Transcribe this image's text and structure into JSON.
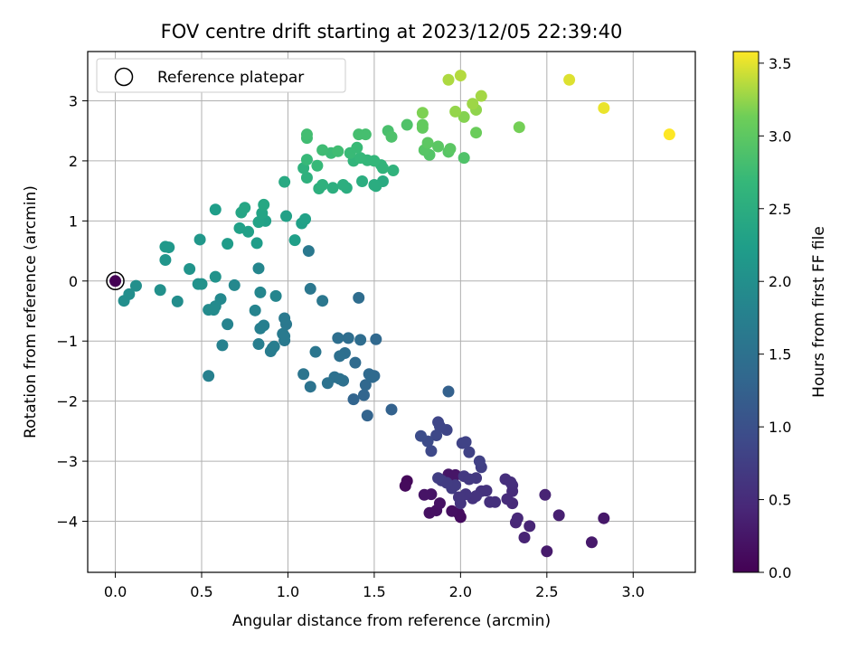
{
  "chart_data": {
    "type": "scatter",
    "title": "FOV centre drift starting at 2023/12/05 22:39:40",
    "xlabel": "Angular distance from reference (arcmin)",
    "ylabel": "Rotation from reference (arcmin)",
    "xlim": [
      -0.16,
      3.36
    ],
    "ylim": [
      -4.85,
      3.82
    ],
    "xticks": [
      "0.0",
      "0.5",
      "1.0",
      "1.5",
      "2.0",
      "2.5",
      "3.0"
    ],
    "yticks": [
      "3",
      "2",
      "1",
      "0",
      "−1",
      "−2",
      "−3",
      "−4"
    ],
    "grid": true,
    "legend": {
      "position": "top-left",
      "entries": [
        "Reference platepar"
      ]
    },
    "colorbar": {
      "label": "Hours from first FF file",
      "colormap": "viridis",
      "range": [
        0.0,
        3.58
      ],
      "ticks": [
        "0.0",
        "0.5",
        "1.0",
        "1.5",
        "2.0",
        "2.5",
        "3.0",
        "3.5"
      ]
    },
    "series": [
      {
        "comment_fields": "each point: [x arcmin, y arcmin, hours]",
        "points": [
          [
            0.0,
            0.0,
            0.0
          ],
          [
            3.21,
            2.44,
            3.58
          ],
          [
            2.83,
            2.88,
            3.52
          ],
          [
            2.63,
            3.35,
            3.48
          ],
          [
            2.0,
            3.42,
            3.35
          ],
          [
            1.93,
            3.35,
            3.33
          ],
          [
            2.12,
            3.08,
            3.3
          ],
          [
            2.07,
            2.95,
            3.28
          ],
          [
            1.97,
            2.82,
            3.25
          ],
          [
            2.09,
            2.85,
            3.24
          ],
          [
            2.02,
            2.73,
            3.2
          ],
          [
            1.78,
            2.8,
            3.18
          ],
          [
            2.34,
            2.56,
            3.15
          ],
          [
            2.09,
            2.47,
            3.1
          ],
          [
            1.78,
            2.55,
            3.05
          ],
          [
            1.78,
            2.6,
            3.05
          ],
          [
            1.81,
            2.3,
            3.0
          ],
          [
            1.87,
            2.24,
            2.98
          ],
          [
            1.94,
            2.2,
            2.98
          ],
          [
            1.93,
            2.15,
            2.95
          ],
          [
            1.79,
            2.18,
            2.95
          ],
          [
            1.82,
            2.1,
            2.93
          ],
          [
            2.02,
            2.05,
            2.9
          ],
          [
            1.69,
            2.6,
            2.9
          ],
          [
            1.6,
            2.4,
            2.88
          ],
          [
            1.58,
            2.5,
            2.85
          ],
          [
            1.41,
            2.44,
            2.82
          ],
          [
            1.45,
            2.44,
            2.82
          ],
          [
            1.11,
            2.44,
            2.8
          ],
          [
            1.11,
            2.38,
            2.78
          ],
          [
            1.29,
            2.16,
            2.78
          ],
          [
            1.2,
            2.18,
            2.76
          ],
          [
            1.25,
            2.13,
            2.74
          ],
          [
            1.36,
            2.13,
            2.72
          ],
          [
            1.4,
            2.22,
            2.72
          ],
          [
            1.11,
            2.02,
            2.7
          ],
          [
            1.17,
            1.92,
            2.7
          ],
          [
            1.42,
            2.05,
            2.68
          ],
          [
            1.46,
            2.01,
            2.66
          ],
          [
            1.5,
            2.0,
            2.66
          ],
          [
            1.38,
            2.0,
            2.64
          ],
          [
            1.54,
            1.93,
            2.62
          ],
          [
            1.55,
            1.88,
            2.62
          ],
          [
            1.61,
            1.84,
            2.6
          ],
          [
            1.09,
            1.88,
            2.58
          ],
          [
            1.11,
            1.72,
            2.56
          ],
          [
            1.2,
            1.6,
            2.56
          ],
          [
            1.18,
            1.54,
            2.54
          ],
          [
            1.26,
            1.55,
            2.52
          ],
          [
            1.32,
            1.6,
            2.52
          ],
          [
            1.34,
            1.55,
            2.5
          ],
          [
            1.43,
            1.66,
            2.5
          ],
          [
            1.5,
            1.6,
            2.48
          ],
          [
            1.51,
            1.58,
            2.48
          ],
          [
            1.55,
            1.66,
            2.46
          ],
          [
            0.98,
            1.65,
            2.44
          ],
          [
            0.86,
            1.27,
            2.4
          ],
          [
            0.75,
            1.22,
            2.38
          ],
          [
            0.73,
            1.14,
            2.36
          ],
          [
            0.85,
            1.13,
            2.34
          ],
          [
            0.83,
            0.98,
            2.32
          ],
          [
            0.87,
            1.0,
            2.3
          ],
          [
            0.72,
            0.88,
            2.28
          ],
          [
            0.77,
            0.82,
            2.28
          ],
          [
            0.99,
            1.08,
            2.3
          ],
          [
            1.1,
            1.03,
            2.3
          ],
          [
            1.08,
            0.96,
            2.28
          ],
          [
            1.04,
            0.68,
            2.26
          ],
          [
            0.58,
            1.19,
            2.24
          ],
          [
            0.82,
            0.63,
            2.22
          ],
          [
            0.65,
            0.62,
            2.2
          ],
          [
            0.29,
            0.57,
            2.15
          ],
          [
            0.31,
            0.56,
            2.14
          ],
          [
            0.49,
            0.69,
            2.12
          ],
          [
            0.29,
            0.35,
            2.1
          ],
          [
            0.43,
            0.2,
            2.08
          ],
          [
            0.58,
            0.07,
            2.06
          ],
          [
            0.48,
            -0.05,
            2.04
          ],
          [
            0.5,
            -0.05,
            2.04
          ],
          [
            0.26,
            -0.15,
            2.02
          ],
          [
            0.12,
            -0.08,
            2.0
          ],
          [
            0.08,
            -0.22,
            1.98
          ],
          [
            0.05,
            -0.33,
            1.98
          ],
          [
            0.36,
            -0.34,
            1.96
          ],
          [
            0.54,
            -0.48,
            1.94
          ],
          [
            0.57,
            -0.48,
            1.94
          ],
          [
            0.58,
            -0.42,
            1.92
          ],
          [
            0.61,
            -0.3,
            1.9
          ],
          [
            0.69,
            -0.07,
            1.88
          ],
          [
            0.83,
            0.21,
            1.86
          ],
          [
            0.84,
            -0.19,
            1.86
          ],
          [
            0.93,
            -0.25,
            1.84
          ],
          [
            0.81,
            -0.49,
            1.82
          ],
          [
            0.65,
            -0.72,
            1.8
          ],
          [
            0.62,
            -1.07,
            1.78
          ],
          [
            0.54,
            -1.58,
            1.76
          ],
          [
            0.84,
            -0.79,
            1.74
          ],
          [
            0.86,
            -0.74,
            1.74
          ],
          [
            0.83,
            -1.05,
            1.72
          ],
          [
            0.91,
            -1.12,
            1.7
          ],
          [
            0.92,
            -1.09,
            1.7
          ],
          [
            0.9,
            -1.17,
            1.68
          ],
          [
            0.97,
            -0.88,
            1.66
          ],
          [
            0.98,
            -0.92,
            1.66
          ],
          [
            0.98,
            -0.99,
            1.64
          ],
          [
            0.98,
            -0.62,
            1.64
          ],
          [
            0.99,
            -0.72,
            1.62
          ],
          [
            1.12,
            0.5,
            1.62
          ],
          [
            1.13,
            -0.13,
            1.6
          ],
          [
            1.2,
            -0.33,
            1.6
          ],
          [
            1.16,
            -1.18,
            1.58
          ],
          [
            1.09,
            -1.55,
            1.56
          ],
          [
            1.13,
            -1.76,
            1.54
          ],
          [
            1.23,
            -1.7,
            1.52
          ],
          [
            1.27,
            -1.6,
            1.5
          ],
          [
            1.3,
            -1.63,
            1.5
          ],
          [
            1.32,
            -1.66,
            1.48
          ],
          [
            1.3,
            -1.25,
            1.48
          ],
          [
            1.33,
            -1.2,
            1.46
          ],
          [
            1.29,
            -0.95,
            1.46
          ],
          [
            1.35,
            -0.95,
            1.44
          ],
          [
            1.42,
            -0.98,
            1.42
          ],
          [
            1.41,
            -0.28,
            1.42
          ],
          [
            1.39,
            -1.36,
            1.4
          ],
          [
            1.47,
            -1.55,
            1.38
          ],
          [
            1.49,
            -1.6,
            1.38
          ],
          [
            1.5,
            -1.58,
            1.36
          ],
          [
            1.51,
            -0.97,
            1.36
          ],
          [
            1.45,
            -1.73,
            1.34
          ],
          [
            1.44,
            -1.9,
            1.32
          ],
          [
            1.38,
            -1.97,
            1.3
          ],
          [
            1.46,
            -2.24,
            1.28
          ],
          [
            1.6,
            -2.14,
            1.26
          ],
          [
            1.93,
            -1.84,
            1.24
          ],
          [
            1.77,
            -2.58,
            0.95
          ],
          [
            1.81,
            -2.67,
            0.92
          ],
          [
            1.83,
            -2.83,
            0.9
          ],
          [
            1.86,
            -2.57,
            0.88
          ],
          [
            1.87,
            -2.35,
            0.86
          ],
          [
            1.88,
            -2.42,
            0.86
          ],
          [
            1.92,
            -2.48,
            0.84
          ],
          [
            2.01,
            -2.7,
            0.82
          ],
          [
            2.03,
            -2.68,
            0.82
          ],
          [
            2.05,
            -2.85,
            0.8
          ],
          [
            2.11,
            -3.0,
            0.78
          ],
          [
            2.12,
            -3.1,
            0.76
          ],
          [
            1.87,
            -3.28,
            0.74
          ],
          [
            1.89,
            -3.32,
            0.72
          ],
          [
            1.92,
            -3.36,
            0.72
          ],
          [
            1.95,
            -3.45,
            0.7
          ],
          [
            1.97,
            -3.4,
            0.7
          ],
          [
            2.02,
            -3.25,
            0.68
          ],
          [
            2.05,
            -3.3,
            0.68
          ],
          [
            2.09,
            -3.28,
            0.66
          ],
          [
            1.99,
            -3.6,
            0.64
          ],
          [
            2.0,
            -3.7,
            0.62
          ],
          [
            2.03,
            -3.55,
            0.62
          ],
          [
            2.07,
            -3.62,
            0.6
          ],
          [
            2.09,
            -3.58,
            0.6
          ],
          [
            2.12,
            -3.5,
            0.58
          ],
          [
            2.15,
            -3.49,
            0.58
          ],
          [
            2.17,
            -3.68,
            0.56
          ],
          [
            2.2,
            -3.68,
            0.56
          ],
          [
            2.26,
            -3.3,
            0.54
          ],
          [
            2.29,
            -3.35,
            0.54
          ],
          [
            2.3,
            -3.4,
            0.52
          ],
          [
            2.3,
            -3.5,
            0.5
          ],
          [
            2.27,
            -3.63,
            0.5
          ],
          [
            2.3,
            -3.7,
            0.48
          ],
          [
            2.33,
            -3.95,
            0.46
          ],
          [
            2.32,
            -4.02,
            0.44
          ],
          [
            2.4,
            -4.08,
            0.42
          ],
          [
            2.37,
            -4.27,
            0.4
          ],
          [
            2.49,
            -3.56,
            0.4
          ],
          [
            2.57,
            -3.9,
            0.36
          ],
          [
            2.5,
            -4.5,
            0.3
          ],
          [
            2.76,
            -4.35,
            0.28
          ],
          [
            2.83,
            -3.95,
            0.26
          ],
          [
            1.93,
            -3.22,
            0.24
          ],
          [
            1.97,
            -3.23,
            0.24
          ],
          [
            1.83,
            -3.55,
            0.22
          ],
          [
            1.79,
            -3.56,
            0.22
          ],
          [
            1.88,
            -3.7,
            0.2
          ],
          [
            1.82,
            -3.86,
            0.18
          ],
          [
            1.86,
            -3.82,
            0.18
          ],
          [
            1.95,
            -3.83,
            0.16
          ],
          [
            1.99,
            -3.87,
            0.14
          ],
          [
            2.0,
            -3.93,
            0.12
          ],
          [
            1.68,
            -3.41,
            0.1
          ],
          [
            1.69,
            -3.33,
            0.08
          ],
          [
            1.95,
            -3.26,
            0.06
          ]
        ]
      }
    ]
  }
}
